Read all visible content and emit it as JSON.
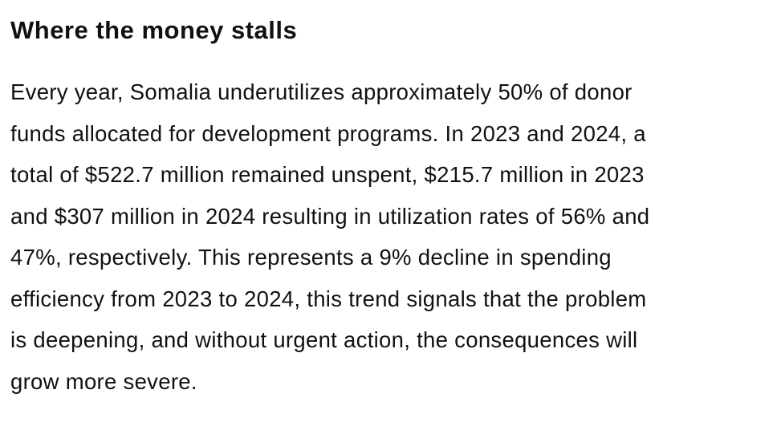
{
  "article": {
    "heading": "Where the money stalls",
    "paragraph_lines": [
      "Every year, Somalia underutilizes approximately 50% of donor",
      "funds allocated for development programs. In 2023 and 2024, a",
      "total of $522.7 million remained unspent, $215.7 million in 2023",
      "and $307 million in 2024 resulting in utilization rates of 56% and",
      "47%, respectively. This represents a 9% decline in spending",
      "efficiency from 2023 to 2024, this trend signals that the problem",
      "is deepening, and without urgent action, the consequences will",
      "grow more severe."
    ]
  }
}
